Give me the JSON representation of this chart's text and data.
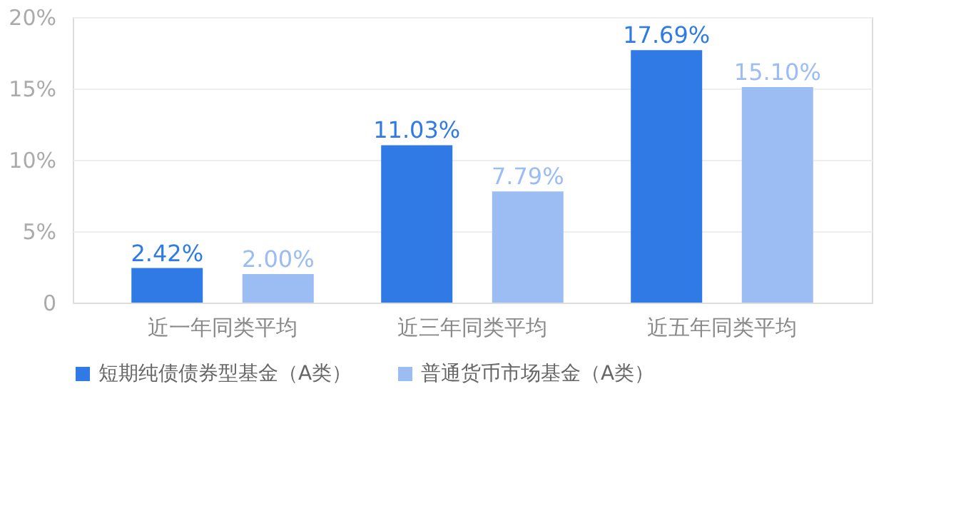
{
  "chart_data": {
    "type": "bar",
    "categories": [
      "近一年同类平均",
      "近三年同类平均",
      "近五年同类平均"
    ],
    "series": [
      {
        "name": "短期纯债债券型基金（A类）",
        "color": "#2f7ae5",
        "values": [
          2.42,
          11.03,
          17.69
        ],
        "value_labels": [
          "2.42%",
          "11.03%",
          "17.69%"
        ]
      },
      {
        "name": "普通货币市场基金（A类）",
        "color": "#9bbdf3",
        "values": [
          2.0,
          7.79,
          15.1
        ],
        "value_labels": [
          "2.00%",
          "7.79%",
          "15.10%"
        ]
      }
    ],
    "ylim": [
      0,
      20
    ],
    "yticks": [
      0,
      {
        "value": 5,
        "label": "5%"
      },
      {
        "value": 10,
        "label": "10%"
      },
      {
        "value": 15,
        "label": "15%"
      },
      {
        "value": 20,
        "label": "20%"
      }
    ],
    "grid": "y",
    "legend": "bottom"
  }
}
